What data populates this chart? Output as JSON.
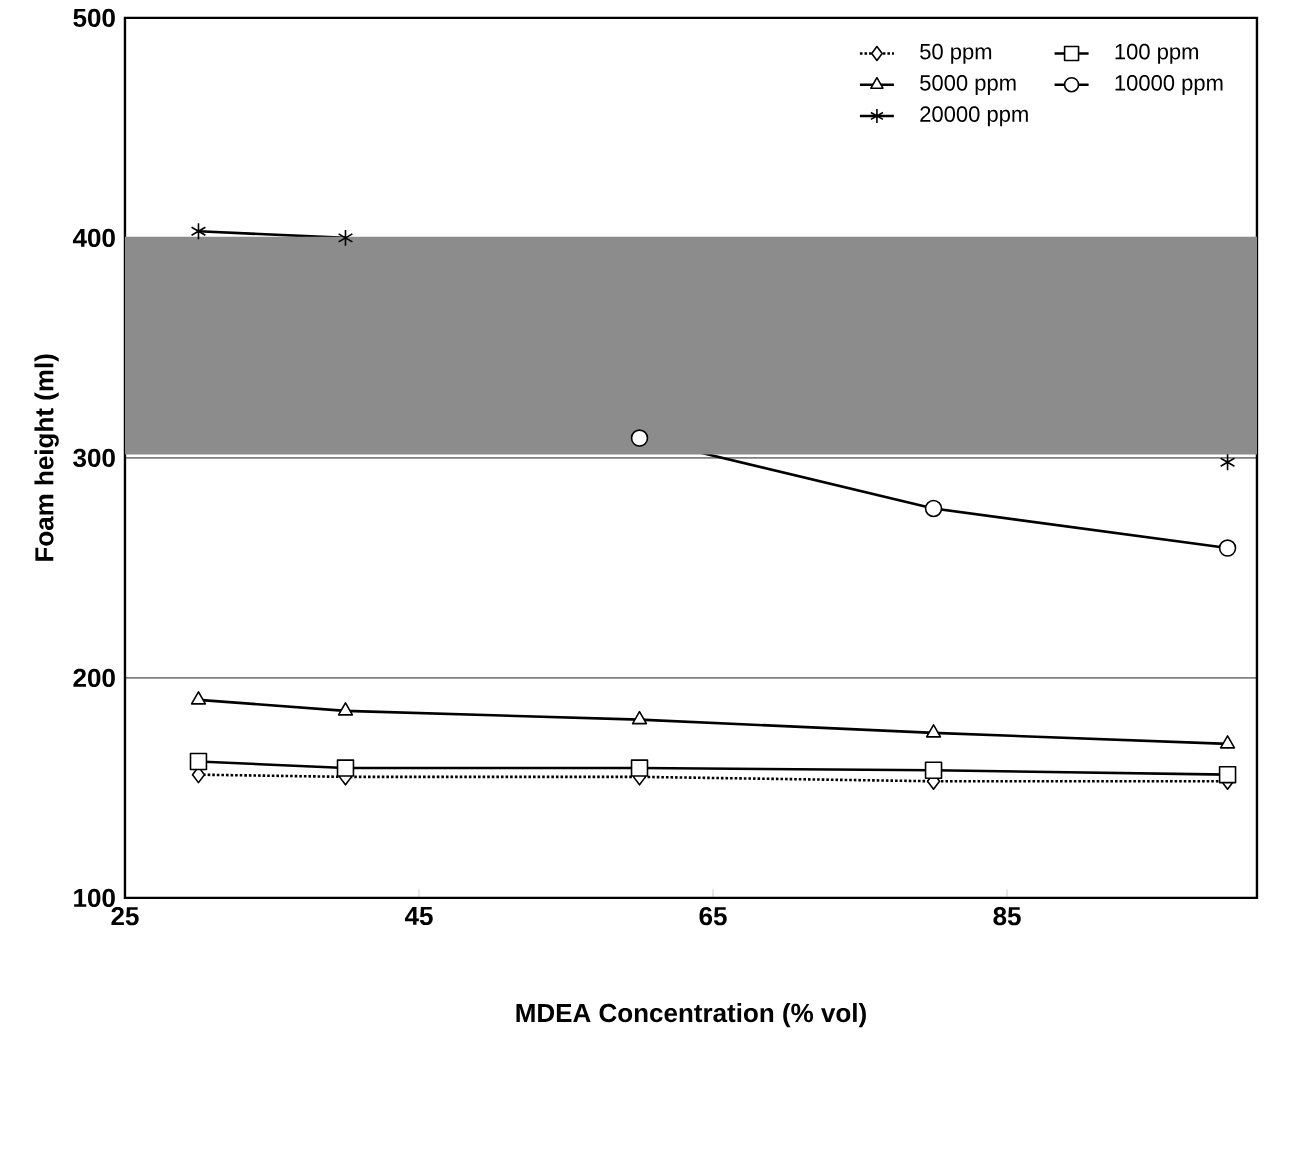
{
  "chart_data": {
    "type": "line",
    "xlabel": "MDEA Concentration (% vol)",
    "ylabel": "Foam height (ml)",
    "x": [
      30,
      40,
      60,
      80,
      100
    ],
    "series": [
      {
        "name": "50 ppm",
        "color": "#000000",
        "marker": "diamond",
        "line_style": "dotted",
        "values": [
          156,
          155,
          155,
          153,
          153
        ]
      },
      {
        "name": "100 ppm",
        "color": "#000000",
        "marker": "square",
        "line_style": "solid",
        "values": [
          162,
          159,
          159,
          158,
          156
        ]
      },
      {
        "name": "5000 ppm",
        "color": "#000000",
        "marker": "triangle",
        "line_style": "solid",
        "values": [
          190,
          185,
          181,
          175,
          170
        ]
      },
      {
        "name": "10000 ppm",
        "color": "#000000",
        "marker": "circle",
        "line_style": "solid",
        "values": [
          null,
          null,
          309,
          277,
          259
        ]
      },
      {
        "name": "20000 ppm",
        "color": "#000000",
        "marker": "cross",
        "line_style": "solid",
        "values": [
          403,
          400,
          null,
          null,
          298
        ]
      }
    ],
    "xlim": [
      25,
      102
    ],
    "ylim": [
      100,
      500
    ],
    "xticks": [
      25,
      45,
      65,
      85
    ],
    "yticks": [
      100,
      200,
      300,
      400,
      500
    ],
    "grid": "y",
    "legend": "top right",
    "bands": [
      {
        "axis": "y",
        "from": 302,
        "to": 400,
        "color": "#8c8c8c"
      }
    ]
  }
}
